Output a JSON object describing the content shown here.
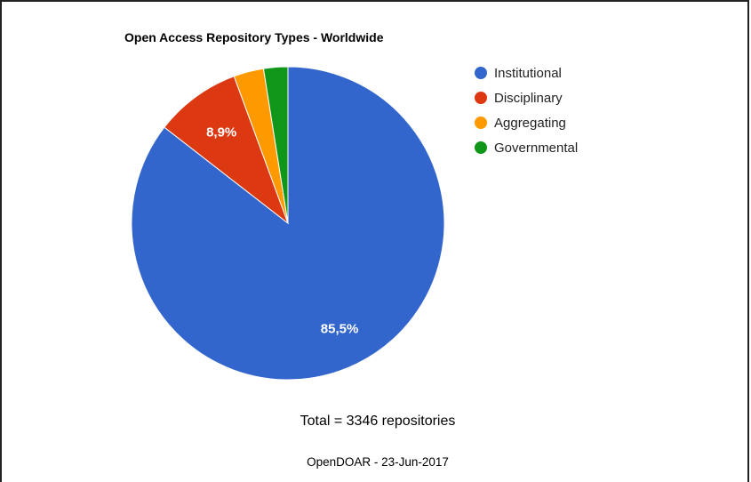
{
  "chart_data": {
    "type": "pie",
    "title": "Open Access Repository Types - Worldwide",
    "slices": [
      {
        "label": "Institutional",
        "value": 85.5,
        "display_label": "85,5%",
        "color": "#3366cc"
      },
      {
        "label": "Disciplinary",
        "value": 8.9,
        "display_label": "8,9%",
        "color": "#dc3912"
      },
      {
        "label": "Aggregating",
        "value": 3.1,
        "display_label": "",
        "color": "#ff9900"
      },
      {
        "label": "Governmental",
        "value": 2.5,
        "display_label": "",
        "color": "#109618"
      }
    ],
    "legend_position": "top-right"
  },
  "footer": {
    "total": "Total = 3346 repositories",
    "source": "OpenDOAR - 23-Jun-2017"
  }
}
